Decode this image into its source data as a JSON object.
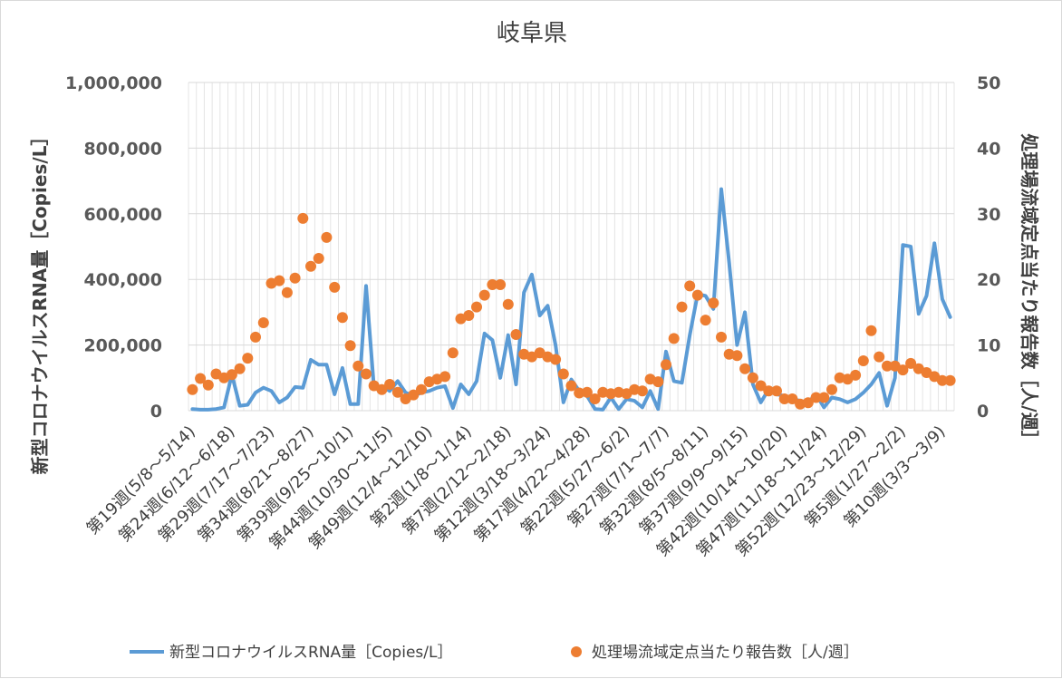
{
  "chart_data": {
    "type": "line+scatter",
    "title": "岐阜県",
    "y_left": {
      "label": "新型コロナウイルスRNA量［Copies/L］",
      "min": 0,
      "max": 1000000,
      "ticks": [
        0,
        200000,
        400000,
        600000,
        800000,
        1000000
      ],
      "tick_labels": [
        "0",
        "200,000",
        "400,000",
        "600,000",
        "800,000",
        "1,000,000"
      ]
    },
    "y_right": {
      "label": "処理場流域定点当たり報告数［人/週］",
      "min": 0,
      "max": 50,
      "ticks": [
        0,
        10,
        20,
        30,
        40,
        50
      ],
      "tick_labels": [
        "0",
        "10",
        "20",
        "30",
        "40",
        "50"
      ]
    },
    "x_tick_labels": [
      "第19週(5/8～5/14)",
      "第24週(6/12～6/18)",
      "第29週(7/17～7/23)",
      "第34週(8/21～8/27)",
      "第39週(9/25～10/1)",
      "第44週(10/30～11/5)",
      "第49週(12/4～12/10)",
      "第2週(1/8～1/14)",
      "第7週(2/12～2/18)",
      "第12週(3/18～3/24)",
      "第17週(4/22～4/28)",
      "第22週(5/27～6/2)",
      "第27週(7/1～7/7)",
      "第32週(8/5～8/11)",
      "第37週(9/9～9/15)",
      "第42週(10/14～10/20)",
      "第47週(11/18～11/24)",
      "第52週(12/23～12/29)",
      "第5週(1/27～2/2)",
      "第10週(3/3～3/9)"
    ],
    "series": [
      {
        "name": "新型コロナウイルスRNA量［Copies/L］",
        "type": "line",
        "axis": "left",
        "color": "#5b9bd5",
        "values": [
          5000,
          3000,
          3000,
          5000,
          10000,
          110000,
          15000,
          18000,
          55000,
          70000,
          60000,
          25000,
          40000,
          72000,
          70000,
          155000,
          140000,
          140000,
          50000,
          130000,
          20000,
          20000,
          380000,
          70000,
          75000,
          60000,
          90000,
          55000,
          45000,
          55000,
          60000,
          70000,
          75000,
          8000,
          80000,
          50000,
          90000,
          235000,
          215000,
          100000,
          230000,
          80000,
          360000,
          415000,
          290000,
          320000,
          200000,
          25000,
          95000,
          60000,
          45000,
          5000,
          3000,
          40000,
          5000,
          35000,
          30000,
          10000,
          60000,
          5000,
          180000,
          90000,
          85000,
          230000,
          355000,
          350000,
          310000,
          675000,
          450000,
          200000,
          300000,
          80000,
          25000,
          65000,
          50000,
          45000,
          35000,
          30000,
          25000,
          50000,
          10000,
          40000,
          35000,
          25000,
          35000,
          55000,
          80000,
          115000,
          15000,
          100000,
          505000,
          500000,
          295000,
          350000,
          510000,
          340000,
          285000
        ]
      },
      {
        "name": "処理場流域定点当たり報告数［人/週］",
        "type": "scatter",
        "axis": "right",
        "color": "#ed7d31",
        "values": [
          3.2,
          4.9,
          3.9,
          5.6,
          5.0,
          5.5,
          6.4,
          8.0,
          11.2,
          13.4,
          19.4,
          19.8,
          18.0,
          20.2,
          29.3,
          22.0,
          23.2,
          26.4,
          18.8,
          14.2,
          9.9,
          6.8,
          5.6,
          3.8,
          3.2,
          4.0,
          2.8,
          1.8,
          2.4,
          3.2,
          4.4,
          4.8,
          5.2,
          8.8,
          14.0,
          14.5,
          15.8,
          17.6,
          19.2,
          19.2,
          16.2,
          11.6,
          8.6,
          8.2,
          8.8,
          8.2,
          7.8,
          5.6,
          3.8,
          2.7,
          2.8,
          1.8,
          2.8,
          2.6,
          2.8,
          2.6,
          3.2,
          3.0,
          4.8,
          4.4,
          7.0,
          11.0,
          15.8,
          19.0,
          17.6,
          13.8,
          16.4,
          11.2,
          8.6,
          8.4,
          6.4,
          5.0,
          3.8,
          3.0,
          3.0,
          1.8,
          1.8,
          1.0,
          1.2,
          2.0,
          2.0,
          3.2,
          5.0,
          4.8,
          5.4,
          7.6,
          12.2,
          8.2,
          6.8,
          6.8,
          6.2,
          7.2,
          6.4,
          5.8,
          5.2,
          4.6,
          4.6
        ]
      }
    ]
  }
}
